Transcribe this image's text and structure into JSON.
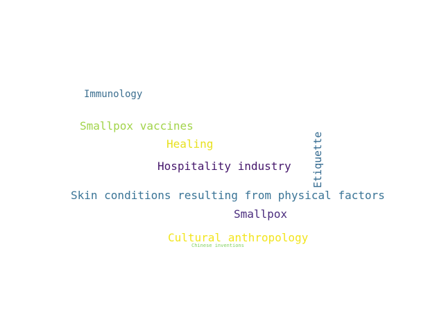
{
  "word_cloud": {
    "words": [
      {
        "id": "immunology",
        "text": "Immunology",
        "color": "#3b6e8f"
      },
      {
        "id": "smallpox_vaccines",
        "text": "Smallpox vaccines",
        "color": "#a2d44b"
      },
      {
        "id": "healing",
        "text": "Healing",
        "color": "#e8e11e"
      },
      {
        "id": "hospitality_industry",
        "text": "Hospitality industry",
        "color": "#45166b"
      },
      {
        "id": "skin_conditions",
        "text": "Skin conditions resulting from physical factors",
        "color": "#3a7496"
      },
      {
        "id": "smallpox",
        "text": "Smallpox",
        "color": "#4a2c7d"
      },
      {
        "id": "cultural_anthropology",
        "text": "Cultural anthropology",
        "color": "#f2e51d"
      },
      {
        "id": "chinese_inventions",
        "text": "Chinese inventions",
        "color": "#7fcf5c"
      },
      {
        "id": "etiquette",
        "text": "Etiquette",
        "color": "#31688e"
      }
    ]
  }
}
